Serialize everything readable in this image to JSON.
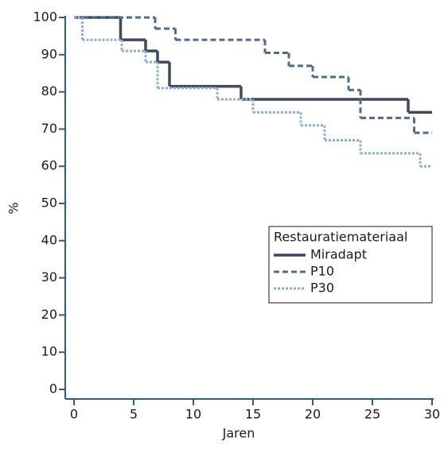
{
  "chart_data": {
    "type": "step",
    "xlabel": "Jaren",
    "ylabel": "%",
    "xlim": [
      0,
      30
    ],
    "ylim": [
      0,
      100
    ],
    "xticks": [
      0,
      5,
      10,
      15,
      20,
      25,
      30
    ],
    "yticks": [
      0,
      10,
      20,
      30,
      40,
      50,
      60,
      70,
      80,
      90,
      100
    ],
    "legend_title": "Restauratiemateriaal",
    "legend_position": "center right",
    "series": [
      {
        "name": "Miradapt",
        "color": "#3b4a5e",
        "style": "solid",
        "x": [
          0,
          3.9,
          6,
          7,
          8,
          14,
          28,
          30
        ],
        "values": [
          100,
          94,
          91,
          88,
          81.5,
          78,
          74.5,
          74.5
        ]
      },
      {
        "name": "P10",
        "color": "#4d6d8f",
        "style": "dashed",
        "x": [
          0,
          6.8,
          8.5,
          16,
          18,
          20,
          23,
          24,
          28.5,
          30
        ],
        "values": [
          100,
          97,
          94,
          90.5,
          87,
          84,
          80.5,
          73,
          69,
          69
        ]
      },
      {
        "name": "P30",
        "color": "#8cb0d2",
        "style": "dotted",
        "x": [
          0,
          0.7,
          4,
          6,
          7,
          12,
          15,
          19,
          21,
          24,
          29,
          30
        ],
        "values": [
          100,
          94,
          91,
          88,
          81,
          78,
          74.5,
          71,
          67,
          63.5,
          60,
          60
        ]
      }
    ]
  }
}
